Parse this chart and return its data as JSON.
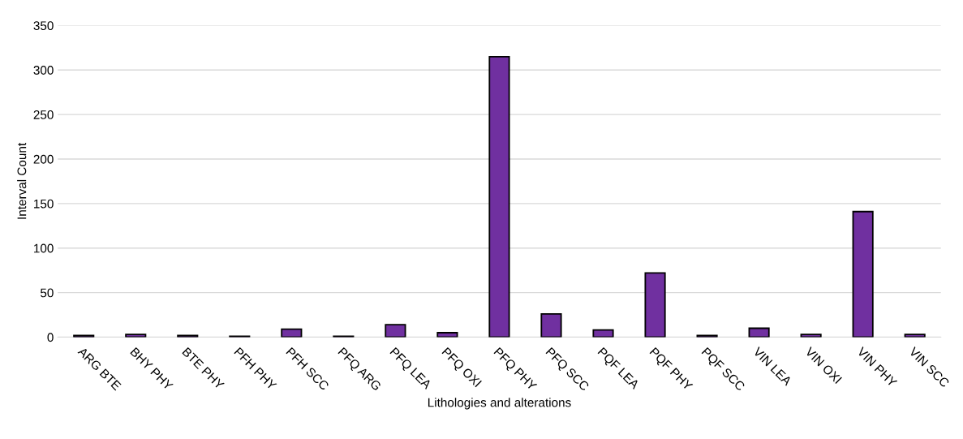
{
  "chart_data": {
    "type": "bar",
    "xlabel": "Lithologies and alterations",
    "ylabel": "Interval Count",
    "categories": [
      "ARG BTE",
      "BHY PHY",
      "BTE PHY",
      "PFH PHY",
      "PFH SCC",
      "PFQ ARG",
      "PFQ LEA",
      "PFQ OXI",
      "PFQ PHY",
      "PFQ SCC",
      "PQF LEA",
      "PQF PHY",
      "PQF SCC",
      "VIN LEA",
      "VIN OXI",
      "VIN PHY",
      "VIN SCC"
    ],
    "values": [
      2,
      3,
      2,
      1,
      9,
      1,
      14,
      5,
      315,
      26,
      8,
      72,
      2,
      10,
      3,
      141,
      3
    ],
    "color": "#7030a0",
    "ylim": [
      0,
      350
    ],
    "yticks": [
      0,
      50,
      100,
      150,
      200,
      250,
      300,
      350
    ],
    "grid": "y",
    "legend": false
  }
}
